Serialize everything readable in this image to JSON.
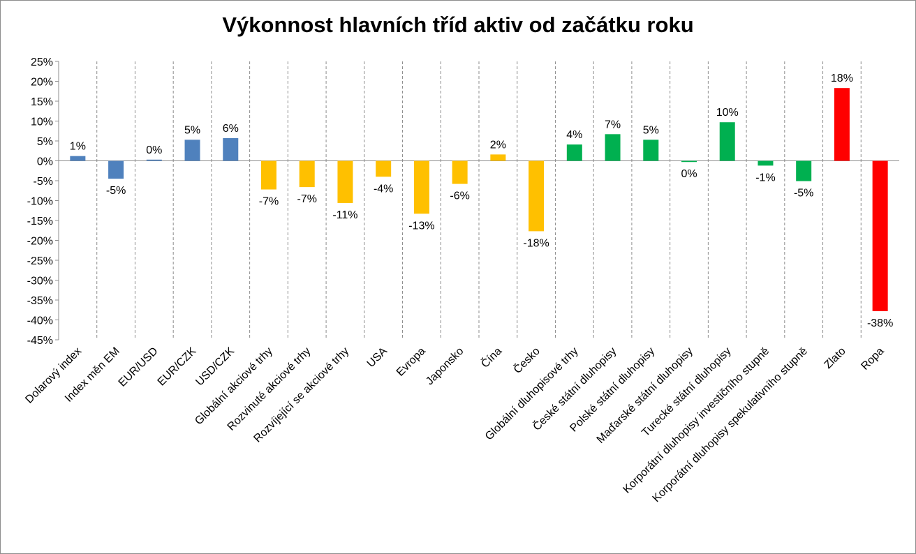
{
  "chart_data": {
    "type": "bar",
    "title": "Výkonnost hlavních tříd aktiv od začátku roku",
    "xlabel": "",
    "ylabel": "",
    "ylim": [
      -45,
      25
    ],
    "y_step": 5,
    "y_tick_labels": [
      "25%",
      "20%",
      "15%",
      "10%",
      "5%",
      "0%",
      "-5%",
      "-10%",
      "-15%",
      "-20%",
      "-25%",
      "-30%",
      "-35%",
      "-40%",
      "-45%"
    ],
    "grid": "vertical dashed between categories",
    "legend": "none",
    "categories": [
      "Dolarový index",
      "Index měn EM",
      "EUR/USD",
      "EUR/CZK",
      "USD/CZK",
      "Globální akciové trhy",
      "Rozvinuté akciové trhy",
      "Rozvíjející se akciové trhy",
      "USA",
      "Evropa",
      "Japonsko",
      "Čína",
      "Česko",
      "Globální dluhopisové trhy",
      "České státní dluhopisy",
      "Polské státní dluhopisy",
      "Maďarské státní dluhopisy",
      "Turecké státní dluhopisy",
      "Korporátní dluhopisy investičního stupně",
      "Korporátní dluhopisy spekulativního stupně",
      "Zlato",
      "Ropa"
    ],
    "values": [
      1.2,
      -4.5,
      0.3,
      5.3,
      5.7,
      -7.2,
      -6.6,
      -10.6,
      -4.0,
      -13.3,
      -5.8,
      1.6,
      -17.7,
      4.1,
      6.7,
      5.3,
      -0.3,
      9.7,
      -1.2,
      -5.1,
      18.3,
      -37.8
    ],
    "data_labels": [
      "1%",
      "-5%",
      "0%",
      "5%",
      "6%",
      "-7%",
      "-7%",
      "-11%",
      "-4%",
      "-13%",
      "-6%",
      "2%",
      "-18%",
      "4%",
      "7%",
      "5%",
      "0%",
      "10%",
      "-1%",
      "-5%",
      "18%",
      "-38%"
    ],
    "bar_colors": [
      "#4f81bd",
      "#4f81bd",
      "#4f81bd",
      "#4f81bd",
      "#4f81bd",
      "#ffc000",
      "#ffc000",
      "#ffc000",
      "#ffc000",
      "#ffc000",
      "#ffc000",
      "#ffc000",
      "#ffc000",
      "#00b050",
      "#00b050",
      "#00b050",
      "#00b050",
      "#00b050",
      "#00b050",
      "#00b050",
      "#ff0000",
      "#ff0000"
    ]
  }
}
